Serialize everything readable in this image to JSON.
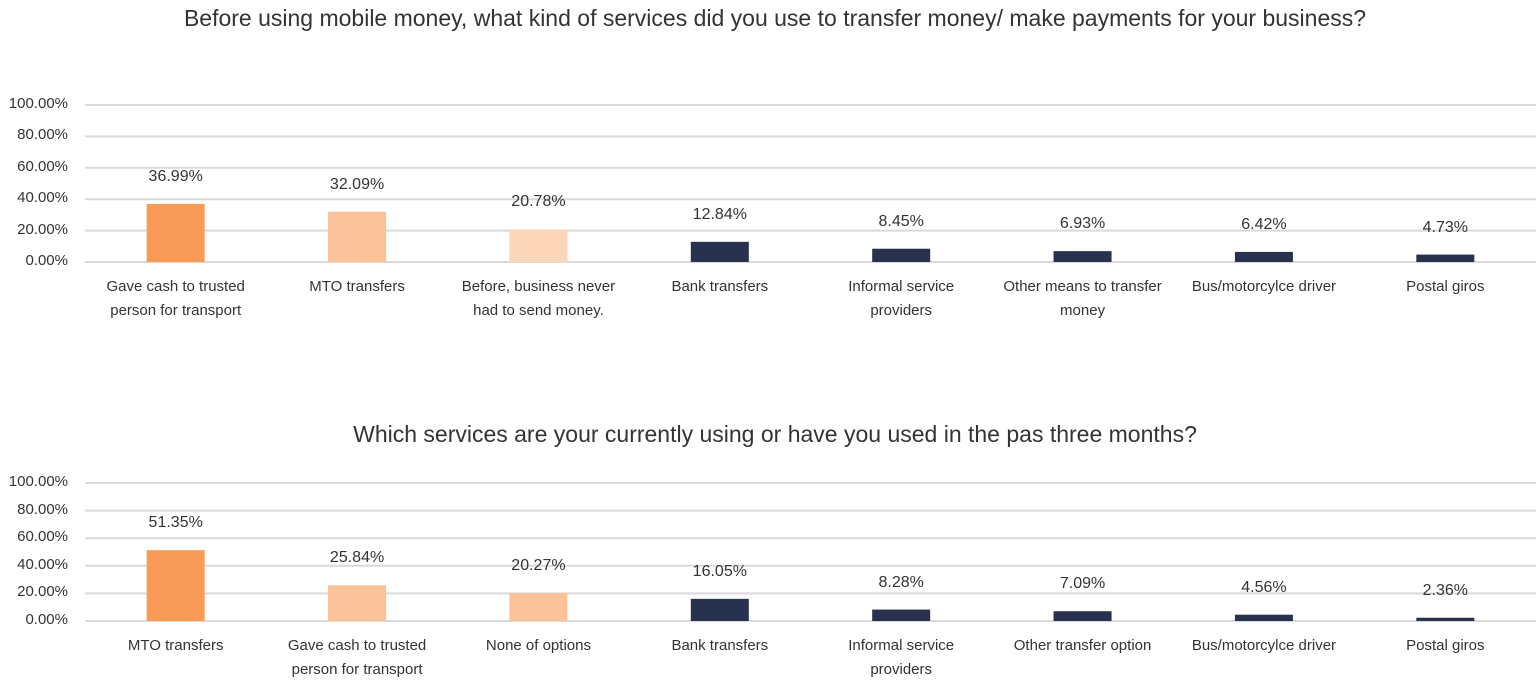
{
  "chart_data": [
    {
      "type": "bar",
      "title": "Before using mobile money, what kind of services did you use to transfer money/ make payments for your business?",
      "categories": [
        "Gave cash to trusted person for transport",
        "MTO transfers",
        "Before, business never had to send money.",
        "Bank transfers",
        "Informal service providers",
        "Other means to transfer money",
        "Bus/motorcylce driver",
        "Postal giros"
      ],
      "values": [
        36.99,
        32.09,
        20.78,
        12.84,
        8.45,
        6.93,
        6.42,
        4.73
      ],
      "value_labels": [
        "36.99%",
        "32.09%",
        "20.78%",
        "12.84%",
        "8.45%",
        "6.93%",
        "6.42%",
        "4.73%"
      ],
      "colors": [
        "#f79b56",
        "#f9c298",
        "#fbd6b9",
        "#28324e",
        "#28324e",
        "#28324e",
        "#28324e",
        "#28324e"
      ],
      "ylim": [
        0,
        100
      ],
      "yticks": [
        {
          "value": 0,
          "label": "0.00%"
        },
        {
          "value": 20,
          "label": "20.00%"
        },
        {
          "value": 40,
          "label": "40.00%"
        },
        {
          "value": 60,
          "label": "60.00%"
        },
        {
          "value": 80,
          "label": "80.00%"
        },
        {
          "value": 100,
          "label": "100.00%"
        }
      ],
      "grid": true
    },
    {
      "type": "bar",
      "title": "Which services are your currently using or have you used in the pas three months?",
      "categories": [
        "MTO transfers",
        "Gave cash to trusted person for transport",
        "None of options",
        "Bank transfers",
        "Informal service providers",
        "Other transfer option",
        "Bus/motorcylce driver",
        "Postal giros"
      ],
      "values": [
        51.35,
        25.84,
        20.27,
        16.05,
        8.28,
        7.09,
        4.56,
        2.36
      ],
      "value_labels": [
        "51.35%",
        "25.84%",
        "20.27%",
        "16.05%",
        "8.28%",
        "7.09%",
        "4.56%",
        "2.36%"
      ],
      "colors": [
        "#f79b56",
        "#f9c298",
        "#f9c298",
        "#28324e",
        "#28324e",
        "#28324e",
        "#28324e",
        "#28324e"
      ],
      "ylim": [
        0,
        100
      ],
      "yticks": [
        {
          "value": 0,
          "label": "0.00%"
        },
        {
          "value": 20,
          "label": "20.00%"
        },
        {
          "value": 40,
          "label": "40.00%"
        },
        {
          "value": 60,
          "label": "60.00%"
        },
        {
          "value": 80,
          "label": "80.00%"
        },
        {
          "value": 100,
          "label": "100.00%"
        }
      ],
      "grid": true
    }
  ]
}
